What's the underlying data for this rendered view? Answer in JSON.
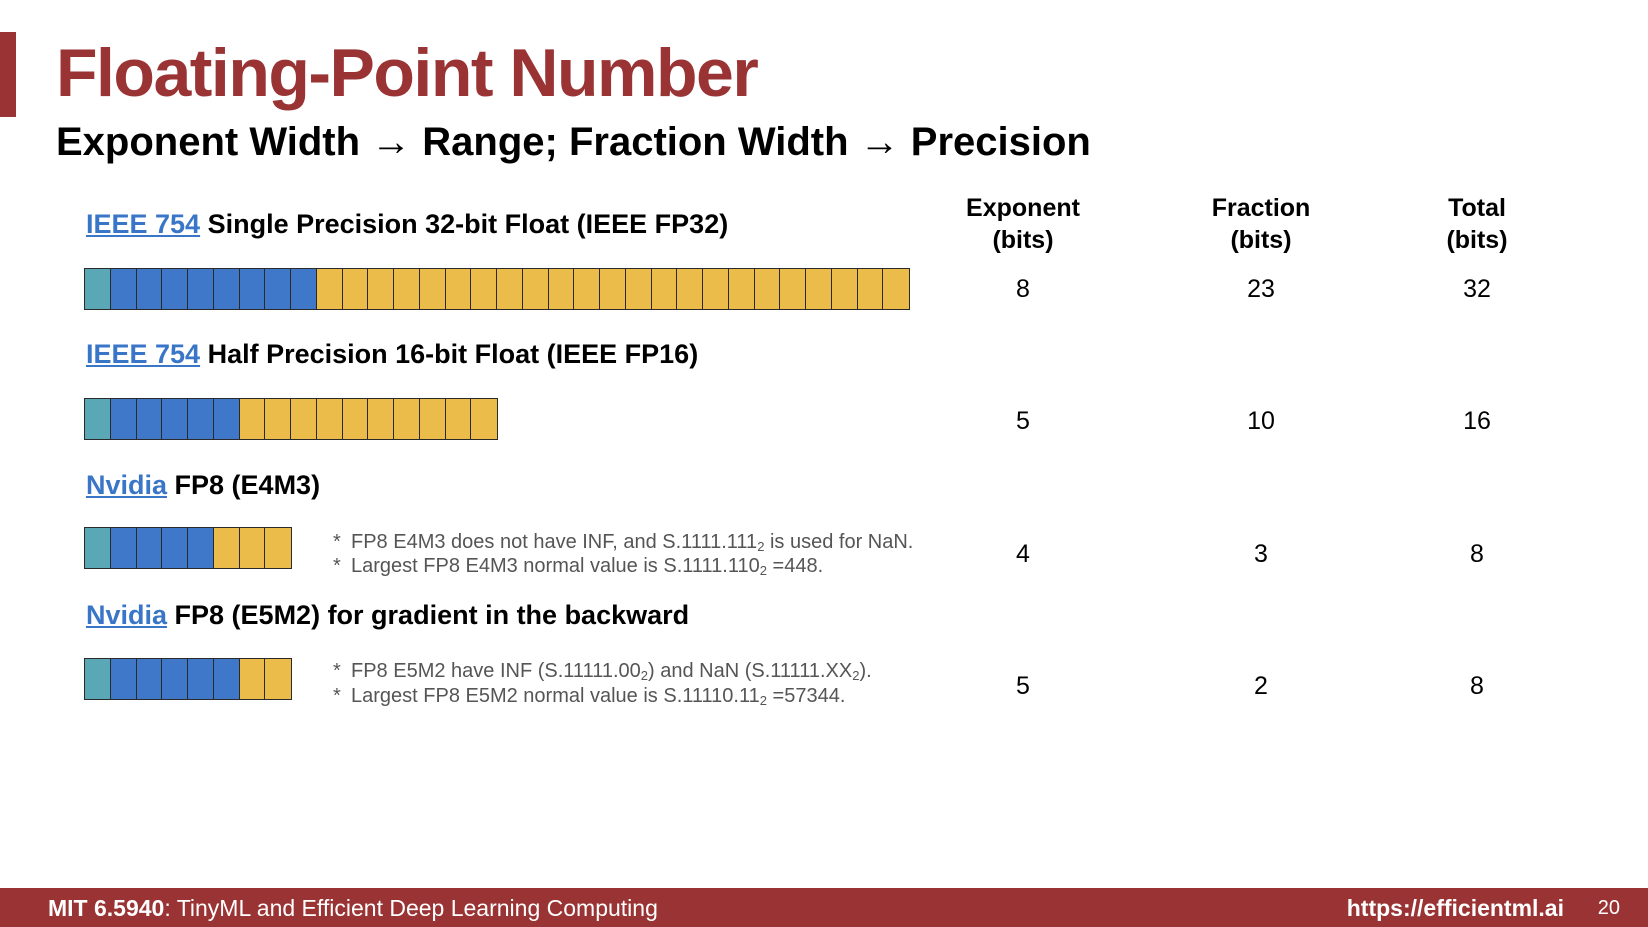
{
  "title": "Floating-Point Number",
  "subtitle": "Exponent Width → Range; Fraction Width → Precision",
  "columns": [
    "Exponent\n(bits)",
    "Fraction\n(bits)",
    "Total\n(bits)"
  ],
  "column_headers": [
    {
      "line1": "Exponent",
      "line2": "(bits)"
    },
    {
      "line1": "Fraction",
      "line2": "(bits)"
    },
    {
      "line1": "Total",
      "line2": "(bits)"
    }
  ],
  "formats": [
    {
      "link": "IEEE 754",
      "heading": " Single Precision 32-bit Float (IEEE FP32)",
      "sign_bits": 1,
      "exponent_bits": 8,
      "fraction_bits": 23,
      "exponent": "8",
      "fraction": "23",
      "total": "32",
      "notes": []
    },
    {
      "link": "IEEE 754",
      "heading": " Half Precision 16-bit Float (IEEE FP16)",
      "sign_bits": 1,
      "exponent_bits": 5,
      "fraction_bits": 10,
      "exponent": "5",
      "fraction": "10",
      "total": "16",
      "notes": []
    },
    {
      "link": "Nvidia",
      "heading": " FP8 (E4M3)",
      "sign_bits": 1,
      "exponent_bits": 4,
      "fraction_bits": 3,
      "exponent": "4",
      "fraction": "3",
      "total": "8",
      "notes": [
        {
          "star": "*",
          "a": "FP8 E4M3 does not have INF, and S.1111.111",
          "sub": "2",
          "b": " is used for NaN."
        },
        {
          "star": "*",
          "a": "Largest FP8 E4M3 normal value is S.1111.110",
          "sub": "2",
          "b": " =448."
        }
      ]
    },
    {
      "link": "Nvidia",
      "heading": " FP8 (E5M2) for gradient in the backward",
      "sign_bits": 1,
      "exponent_bits": 5,
      "fraction_bits": 2,
      "exponent": "5",
      "fraction": "2",
      "total": "8",
      "notes": [
        {
          "star": "*",
          "a": "FP8 E5M2 have INF (S.11111.00",
          "sub": "2",
          "b": ") and NaN (S.11111.XX",
          "sub2": "2",
          "c": ")."
        },
        {
          "star": "*",
          "a": "Largest FP8 E5M2 normal value is S.11110.11",
          "sub": "2",
          "b": " =57344."
        }
      ]
    }
  ],
  "colors": {
    "brand": "#9a3334",
    "link": "#3a76c7",
    "sign_bit": "#5aa8b5",
    "exponent_bit": "#3f78c8",
    "fraction_bit": "#ecbc4b"
  },
  "footer": {
    "course_code": "MIT 6.5940",
    "course_name": ": TinyML and Efficient Deep Learning Computing",
    "url": "https://efficientml.ai",
    "page_number": "20"
  }
}
